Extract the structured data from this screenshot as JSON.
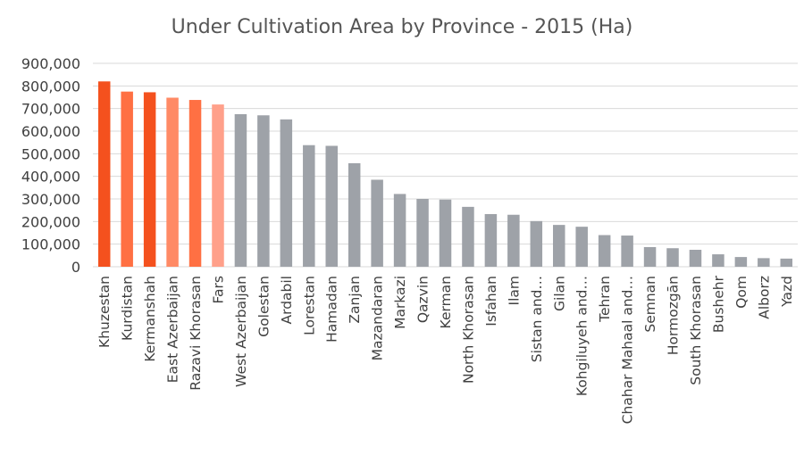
{
  "chart_data": {
    "type": "bar",
    "title": "Under Cultivation Area by Province - 2015 (Ha)",
    "xlabel": "",
    "ylabel": "",
    "ylim": [
      0,
      900000
    ],
    "yticks": [
      0,
      100000,
      200000,
      300000,
      400000,
      500000,
      600000,
      700000,
      800000,
      900000
    ],
    "ytick_labels": [
      "0",
      "100,000",
      "200,000",
      "300,000",
      "400,000",
      "500,000",
      "600,000",
      "700,000",
      "800,000",
      "900,000"
    ],
    "grid": true,
    "legend": "none",
    "categories": [
      "Khuzestan",
      "Kurdistan",
      "Kermanshah",
      "East Azerbaijan",
      "Razavi Khorasan",
      "Fars",
      "West Azerbaijan",
      "Golestan",
      "Ardabil",
      "Lorestan",
      "Hamadan",
      "Zanjan",
      "Mazandaran",
      "Markazi",
      "Qazvin",
      "Kerman",
      "North Khorasan",
      "Isfahan",
      "Ilam",
      "Sistan and…",
      "Gilan",
      "Kohgiluyeh and…",
      "Tehran",
      "Chahar Mahaal and…",
      "Semnan",
      "Hormozgān",
      "South Khorasan",
      "Bushehr",
      "Qom",
      "Alborz",
      "Yazd"
    ],
    "values": [
      820000,
      775000,
      772000,
      748000,
      738000,
      718000,
      675000,
      670000,
      652000,
      538000,
      535000,
      458000,
      385000,
      322000,
      300000,
      297000,
      265000,
      233000,
      230000,
      202000,
      185000,
      177000,
      140000,
      138000,
      87000,
      82000,
      75000,
      55000,
      43000,
      38000,
      36000
    ],
    "colors": [
      "#f4511e",
      "#ff7043",
      "#f4511e",
      "#ff8a65",
      "#ff7043",
      "#ffa08a",
      "#9ea2a8",
      "#9ea2a8",
      "#9ea2a8",
      "#9ea2a8",
      "#9ea2a8",
      "#9ea2a8",
      "#9ea2a8",
      "#9ea2a8",
      "#9ea2a8",
      "#9ea2a8",
      "#9ea2a8",
      "#9ea2a8",
      "#9ea2a8",
      "#9ea2a8",
      "#9ea2a8",
      "#9ea2a8",
      "#9ea2a8",
      "#9ea2a8",
      "#9ea2a8",
      "#9ea2a8",
      "#9ea2a8",
      "#9ea2a8",
      "#9ea2a8",
      "#9ea2a8",
      "#9ea2a8"
    ],
    "gridline_color": "#d9d9d9"
  }
}
